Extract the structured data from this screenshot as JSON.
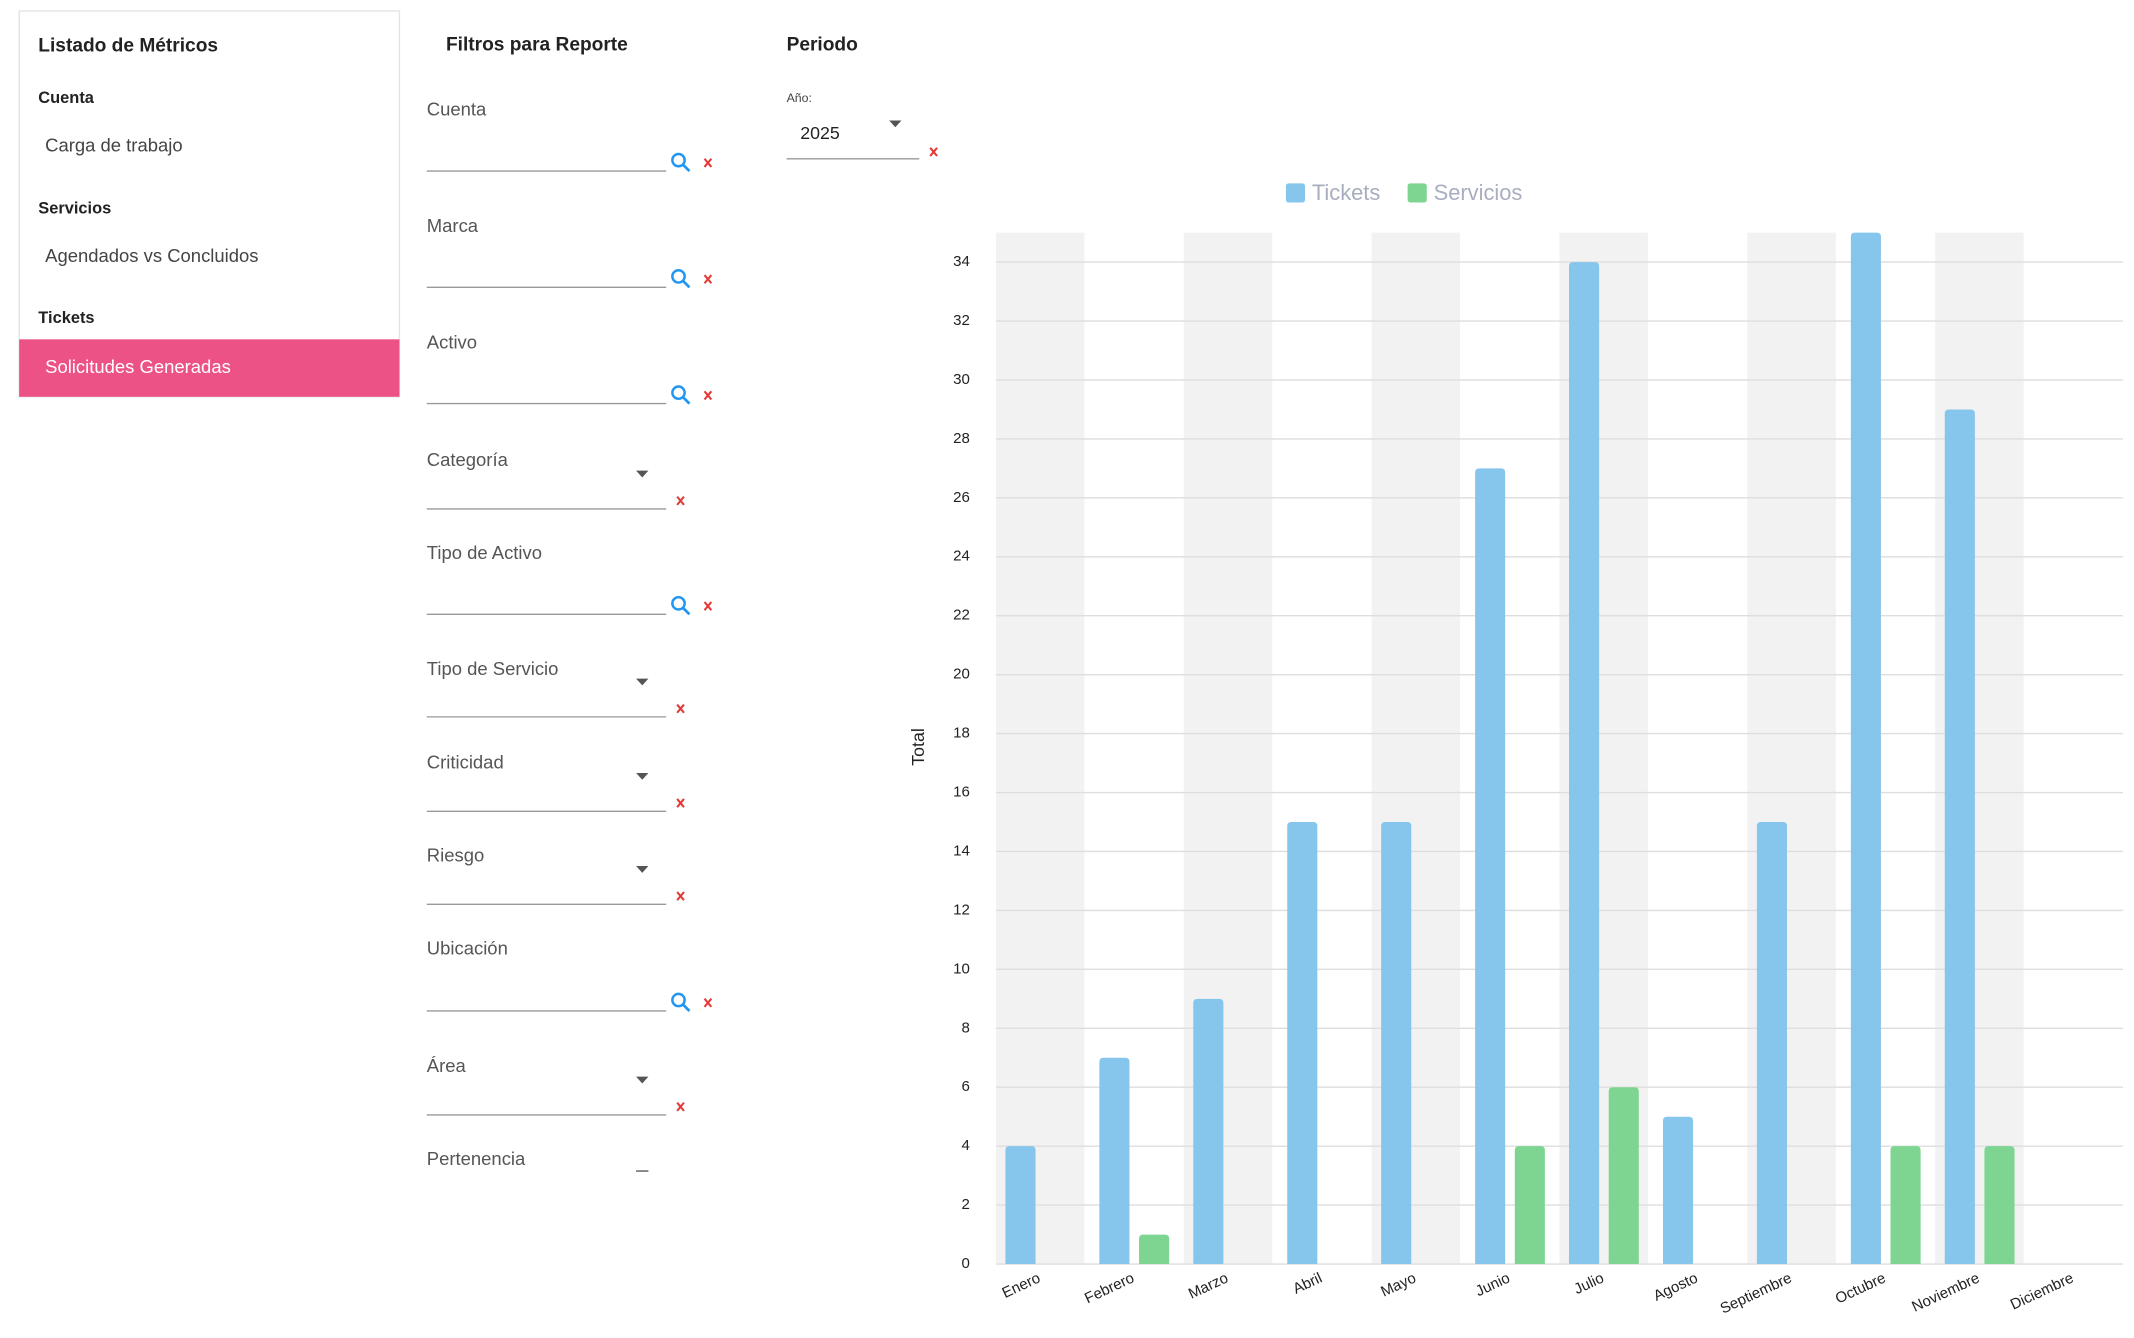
{
  "sidebar": {
    "title": "Listado de Métricos",
    "groups": [
      {
        "heading": "Cuenta",
        "items": [
          "Carga de trabajo"
        ]
      },
      {
        "heading": "Servicios",
        "items": [
          "Agendados vs Concluidos"
        ]
      },
      {
        "heading": "Tickets",
        "items": [
          "Solicitudes Generadas"
        ]
      }
    ]
  },
  "filters": {
    "title": "Filtros para Reporte",
    "fields": [
      "Cuenta",
      "Marca",
      "Activo",
      "Categoría",
      "Tipo de Activo",
      "Tipo de Servicio",
      "Criticidad",
      "Riesgo",
      "Ubicación",
      "Área",
      "Pertenencia"
    ]
  },
  "period": {
    "title": "Periodo",
    "year_label": "Año:",
    "year": "2025"
  },
  "chart_data": {
    "type": "bar",
    "y_label": "Total",
    "categories": [
      "Enero",
      "Febrero",
      "Marzo",
      "Abril",
      "Mayo",
      "Junio",
      "Julio",
      "Agosto",
      "Septiembre",
      "Octubre",
      "Noviembre",
      "Diciembre"
    ],
    "series": [
      {
        "name": "Tickets",
        "color": "#86c5ec",
        "values": [
          4,
          7,
          9,
          15,
          15,
          27,
          34,
          5,
          15,
          35,
          29,
          0
        ]
      },
      {
        "name": "Servicios",
        "color": "#7dd591",
        "values": [
          0,
          1,
          0,
          0,
          0,
          4,
          6,
          0,
          0,
          4,
          4,
          0
        ]
      }
    ],
    "ylim": [
      0,
      35
    ],
    "yticks": [
      0,
      2,
      4,
      6,
      8,
      10,
      12,
      14,
      16,
      18,
      20,
      22,
      24,
      26,
      28,
      30,
      32,
      34
    ],
    "grid": true,
    "legend": "top"
  }
}
